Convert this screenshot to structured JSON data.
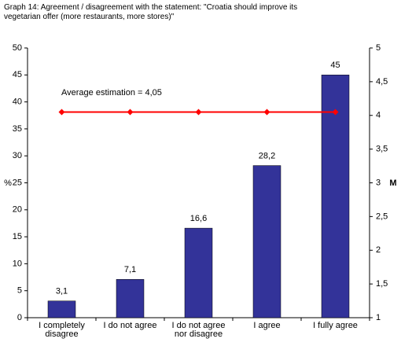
{
  "chart_data": {
    "type": "bar",
    "title": "Graph 14: Agreement / disagreement with the statement: \"Croatia should improve its vegetarian offer (more restaurants, more stores)\"",
    "annotation": "Average estimation = 4,05",
    "y_label": "%",
    "y2_label": "M",
    "categories": [
      [
        "I completely",
        "disagree"
      ],
      [
        "I do not agree"
      ],
      [
        "I do not agree",
        "nor disagree"
      ],
      [
        "I agree"
      ],
      [
        "I fully agree"
      ]
    ],
    "series": [
      {
        "type": "bar",
        "color": "#333399",
        "values": [
          3.1,
          7.1,
          16.6,
          28.2,
          45
        ],
        "value_labels": [
          "3,1",
          "7,1",
          "16,6",
          "28,2",
          "45"
        ]
      },
      {
        "type": "line",
        "axis": "y2",
        "color": "#ff0000",
        "values": [
          4.05,
          4.05,
          4.05,
          4.05,
          4.05
        ]
      }
    ],
    "ylim": [
      0,
      50
    ],
    "yticks": [
      0,
      5,
      10,
      15,
      20,
      25,
      30,
      35,
      40,
      45,
      50
    ],
    "y2lim": [
      1,
      5
    ],
    "y2ticks": [
      1,
      {
        "value": 1.5,
        "label": "1,5"
      },
      2,
      {
        "value": 2.5,
        "label": "2,5"
      },
      3,
      {
        "value": 3.5,
        "label": "3,5"
      },
      4,
      {
        "value": 4.5,
        "label": "4,5"
      },
      5
    ],
    "grid": false
  }
}
